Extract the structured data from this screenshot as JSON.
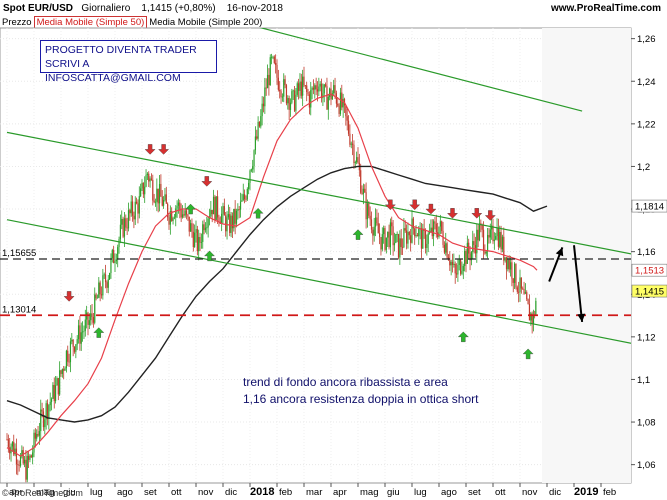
{
  "header": {
    "instrument": "Spot EUR/USD",
    "period": "Giornaliero",
    "price": "1,1415 (+0,80%)",
    "date": "16-nov-2018",
    "site": "www.ProRealTime.com"
  },
  "legend": {
    "price": "Prezzo",
    "ma50": "Media Mobile (Simple 50)",
    "ma200": "Media Mobile (Simple 200)"
  },
  "promo": {
    "line1": "PROGETTO DIVENTA TRADER",
    "line2": "SCRIVI A INFOSCATTA@GMAIL.COM"
  },
  "note": {
    "line1": "trend di fondo ancora ribassista e area",
    "line2": "1,16 ancora resistenza doppia in ottica short"
  },
  "footer": "© ProRealTime.com",
  "colors": {
    "candle_up": "#2aa02a",
    "candle_down": "#c0392b",
    "ma50": "#e8404a",
    "ma200": "#222222",
    "channel": "#2a9a2a",
    "hline_black": "#222222",
    "hline_red": "#d01818",
    "arrow_up": "#2db52d",
    "arrow_down": "#d63030"
  },
  "chart_data": {
    "type": "line",
    "title": "Spot EUR/USD Giornaliero",
    "xlabel": "",
    "ylabel": "",
    "ylim": [
      1.05,
      1.265
    ],
    "y_ticks": [
      1.06,
      1.08,
      1.1,
      1.12,
      1.14,
      1.16,
      1.18,
      1.2,
      1.22,
      1.24,
      1.26
    ],
    "y_tick_labels": [
      "1,06",
      "1,08",
      "1,1",
      "1,12",
      "1,14",
      "1,16",
      "1,18",
      "1,2",
      "1,22",
      "1,24",
      "1,26"
    ],
    "x_labels": [
      "apr",
      "mag",
      "giu",
      "lug",
      "ago",
      "set",
      "ott",
      "nov",
      "dic",
      "2018",
      "feb",
      "mar",
      "apr",
      "mag",
      "giu",
      "lug",
      "ago",
      "set",
      "ott",
      "nov",
      "dic",
      "2019",
      "feb"
    ],
    "x_label_bold": [
      "2018",
      "2019"
    ],
    "last_month_index": 19.63,
    "series": [
      {
        "name": "Prezzo",
        "kind": "close",
        "points": [
          [
            0,
            1.072
          ],
          [
            0.25,
            1.068
          ],
          [
            0.5,
            1.062
          ],
          [
            0.7,
            1.058
          ],
          [
            0.9,
            1.064
          ],
          [
            1.1,
            1.075
          ],
          [
            1.3,
            1.082
          ],
          [
            1.6,
            1.09
          ],
          [
            1.9,
            1.098
          ],
          [
            2.2,
            1.112
          ],
          [
            2.5,
            1.118
          ],
          [
            2.8,
            1.123
          ],
          [
            3.1,
            1.128
          ],
          [
            3.4,
            1.14
          ],
          [
            3.7,
            1.148
          ],
          [
            4.0,
            1.16
          ],
          [
            4.3,
            1.172
          ],
          [
            4.6,
            1.178
          ],
          [
            4.9,
            1.183
          ],
          [
            5.2,
            1.197
          ],
          [
            5.4,
            1.19
          ],
          [
            5.7,
            1.185
          ],
          [
            6.0,
            1.178
          ],
          [
            6.3,
            1.182
          ],
          [
            6.6,
            1.176
          ],
          [
            6.9,
            1.168
          ],
          [
            7.1,
            1.162
          ],
          [
            7.3,
            1.175
          ],
          [
            7.6,
            1.182
          ],
          [
            7.9,
            1.178
          ],
          [
            8.2,
            1.172
          ],
          [
            8.5,
            1.176
          ],
          [
            8.8,
            1.185
          ],
          [
            9.0,
            1.2
          ],
          [
            9.2,
            1.21
          ],
          [
            9.4,
            1.222
          ],
          [
            9.6,
            1.238
          ],
          [
            9.8,
            1.248
          ],
          [
            10.0,
            1.242
          ],
          [
            10.3,
            1.235
          ],
          [
            10.6,
            1.23
          ],
          [
            10.9,
            1.238
          ],
          [
            11.2,
            1.232
          ],
          [
            11.5,
            1.24
          ],
          [
            11.8,
            1.232
          ],
          [
            12.1,
            1.235
          ],
          [
            12.4,
            1.228
          ],
          [
            12.7,
            1.215
          ],
          [
            13.0,
            1.2
          ],
          [
            13.3,
            1.18
          ],
          [
            13.6,
            1.172
          ],
          [
            13.9,
            1.165
          ],
          [
            14.2,
            1.168
          ],
          [
            14.5,
            1.162
          ],
          [
            14.8,
            1.168
          ],
          [
            15.1,
            1.172
          ],
          [
            15.4,
            1.165
          ],
          [
            15.7,
            1.168
          ],
          [
            16.0,
            1.172
          ],
          [
            16.3,
            1.162
          ],
          [
            16.6,
            1.148
          ],
          [
            16.9,
            1.158
          ],
          [
            17.2,
            1.16
          ],
          [
            17.5,
            1.17
          ],
          [
            17.8,
            1.162
          ],
          [
            18.1,
            1.172
          ],
          [
            18.4,
            1.16
          ],
          [
            18.7,
            1.152
          ],
          [
            19.0,
            1.142
          ],
          [
            19.3,
            1.132
          ],
          [
            19.5,
            1.128
          ],
          [
            19.63,
            1.1415
          ]
        ]
      },
      {
        "name": "Media Mobile (Simple 50)",
        "kind": "ma50",
        "points": [
          [
            0,
            1.068
          ],
          [
            0.5,
            1.064
          ],
          [
            1,
            1.068
          ],
          [
            1.5,
            1.075
          ],
          [
            2,
            1.083
          ],
          [
            2.5,
            1.09
          ],
          [
            3,
            1.098
          ],
          [
            3.5,
            1.11
          ],
          [
            4,
            1.128
          ],
          [
            4.5,
            1.145
          ],
          [
            5,
            1.16
          ],
          [
            5.5,
            1.172
          ],
          [
            6,
            1.178
          ],
          [
            6.5,
            1.18
          ],
          [
            7,
            1.18
          ],
          [
            7.5,
            1.176
          ],
          [
            8,
            1.173
          ],
          [
            8.5,
            1.172
          ],
          [
            9,
            1.176
          ],
          [
            9.5,
            1.195
          ],
          [
            10,
            1.212
          ],
          [
            10.5,
            1.222
          ],
          [
            11,
            1.228
          ],
          [
            11.5,
            1.232
          ],
          [
            12,
            1.234
          ],
          [
            12.5,
            1.23
          ],
          [
            13,
            1.218
          ],
          [
            13.5,
            1.2
          ],
          [
            14,
            1.186
          ],
          [
            14.5,
            1.176
          ],
          [
            15,
            1.172
          ],
          [
            15.5,
            1.17
          ],
          [
            16,
            1.168
          ],
          [
            16.5,
            1.164
          ],
          [
            17,
            1.162
          ],
          [
            17.5,
            1.161
          ],
          [
            18,
            1.16
          ],
          [
            18.5,
            1.158
          ],
          [
            19,
            1.156
          ],
          [
            19.5,
            1.153
          ],
          [
            19.63,
            1.1513
          ]
        ]
      },
      {
        "name": "Media Mobile (Simple 200)",
        "kind": "ma200",
        "points": [
          [
            0,
            1.09
          ],
          [
            0.5,
            1.088
          ],
          [
            1,
            1.085
          ],
          [
            1.5,
            1.082
          ],
          [
            2,
            1.081
          ],
          [
            2.5,
            1.08
          ],
          [
            3,
            1.081
          ],
          [
            3.5,
            1.083
          ],
          [
            4,
            1.087
          ],
          [
            4.5,
            1.094
          ],
          [
            5,
            1.102
          ],
          [
            5.5,
            1.11
          ],
          [
            6,
            1.12
          ],
          [
            6.5,
            1.13
          ],
          [
            7,
            1.139
          ],
          [
            7.5,
            1.146
          ],
          [
            8,
            1.152
          ],
          [
            8.5,
            1.16
          ],
          [
            9,
            1.168
          ],
          [
            9.5,
            1.175
          ],
          [
            10,
            1.181
          ],
          [
            10.5,
            1.186
          ],
          [
            11,
            1.19
          ],
          [
            11.5,
            1.194
          ],
          [
            12,
            1.197
          ],
          [
            12.5,
            1.199
          ],
          [
            13,
            1.2
          ],
          [
            13.5,
            1.2
          ],
          [
            14,
            1.198
          ],
          [
            14.5,
            1.196
          ],
          [
            15,
            1.194
          ],
          [
            15.5,
            1.192
          ],
          [
            16,
            1.191
          ],
          [
            16.5,
            1.19
          ],
          [
            17,
            1.189
          ],
          [
            17.5,
            1.188
          ],
          [
            18,
            1.187
          ],
          [
            18.5,
            1.185
          ],
          [
            19,
            1.183
          ],
          [
            19.5,
            1.179
          ],
          [
            20.0,
            1.1814
          ]
        ]
      }
    ],
    "channel_lines": [
      {
        "name": "upper-channel-line",
        "p1": [
          7.0,
          1.273
        ],
        "p2": [
          21.3,
          1.226
        ]
      },
      {
        "name": "middle-channel-line",
        "p1": [
          0,
          1.216
        ],
        "p2": [
          23.5,
          1.158
        ]
      },
      {
        "name": "lower-channel-line",
        "p1": [
          0,
          1.175
        ],
        "p2": [
          23.5,
          1.116
        ]
      }
    ],
    "horizontal_lines": [
      {
        "name": "resistance-line",
        "label": "1,15655",
        "value": 1.15655,
        "color": "#222222"
      },
      {
        "name": "support-line",
        "label": "1,13014",
        "value": 1.13014,
        "color": "#d01818"
      }
    ],
    "price_tags": [
      {
        "name": "ma200-tag",
        "label": "1,1814",
        "value": 1.1814,
        "bg": "#ffffff",
        "fg": "#000000"
      },
      {
        "name": "ma50-tag",
        "label": "1,1513",
        "value": 1.1513,
        "bg": "#ffffff",
        "fg": "#d01818"
      },
      {
        "name": "price-tag",
        "label": "1,1415",
        "value": 1.1415,
        "bg": "#ffff66",
        "fg": "#000000"
      }
    ],
    "signal_arrows": [
      {
        "dir": "down",
        "x": 2.3,
        "y": 1.139
      },
      {
        "dir": "up",
        "x": 3.4,
        "y": 1.122
      },
      {
        "dir": "down",
        "x": 5.3,
        "y": 1.208
      },
      {
        "dir": "down",
        "x": 5.8,
        "y": 1.208
      },
      {
        "dir": "down",
        "x": 7.4,
        "y": 1.193
      },
      {
        "dir": "up",
        "x": 6.8,
        "y": 1.18
      },
      {
        "dir": "up",
        "x": 7.5,
        "y": 1.158
      },
      {
        "dir": "up",
        "x": 9.3,
        "y": 1.178
      },
      {
        "dir": "up",
        "x": 13.0,
        "y": 1.168
      },
      {
        "dir": "down",
        "x": 14.2,
        "y": 1.182
      },
      {
        "dir": "down",
        "x": 15.1,
        "y": 1.182
      },
      {
        "dir": "down",
        "x": 15.7,
        "y": 1.18
      },
      {
        "dir": "down",
        "x": 16.5,
        "y": 1.178
      },
      {
        "dir": "down",
        "x": 17.4,
        "y": 1.178
      },
      {
        "dir": "down",
        "x": 17.9,
        "y": 1.177
      },
      {
        "dir": "up",
        "x": 16.9,
        "y": 1.12
      },
      {
        "dir": "up",
        "x": 19.3,
        "y": 1.112
      }
    ],
    "annotation_arrows": [
      {
        "from": [
          20.08,
          1.146
        ],
        "to": [
          20.57,
          1.162
        ]
      },
      {
        "from": [
          21.0,
          1.163
        ],
        "to": [
          21.3,
          1.127
        ]
      }
    ],
    "grid": true,
    "legend_position": "top-left"
  }
}
